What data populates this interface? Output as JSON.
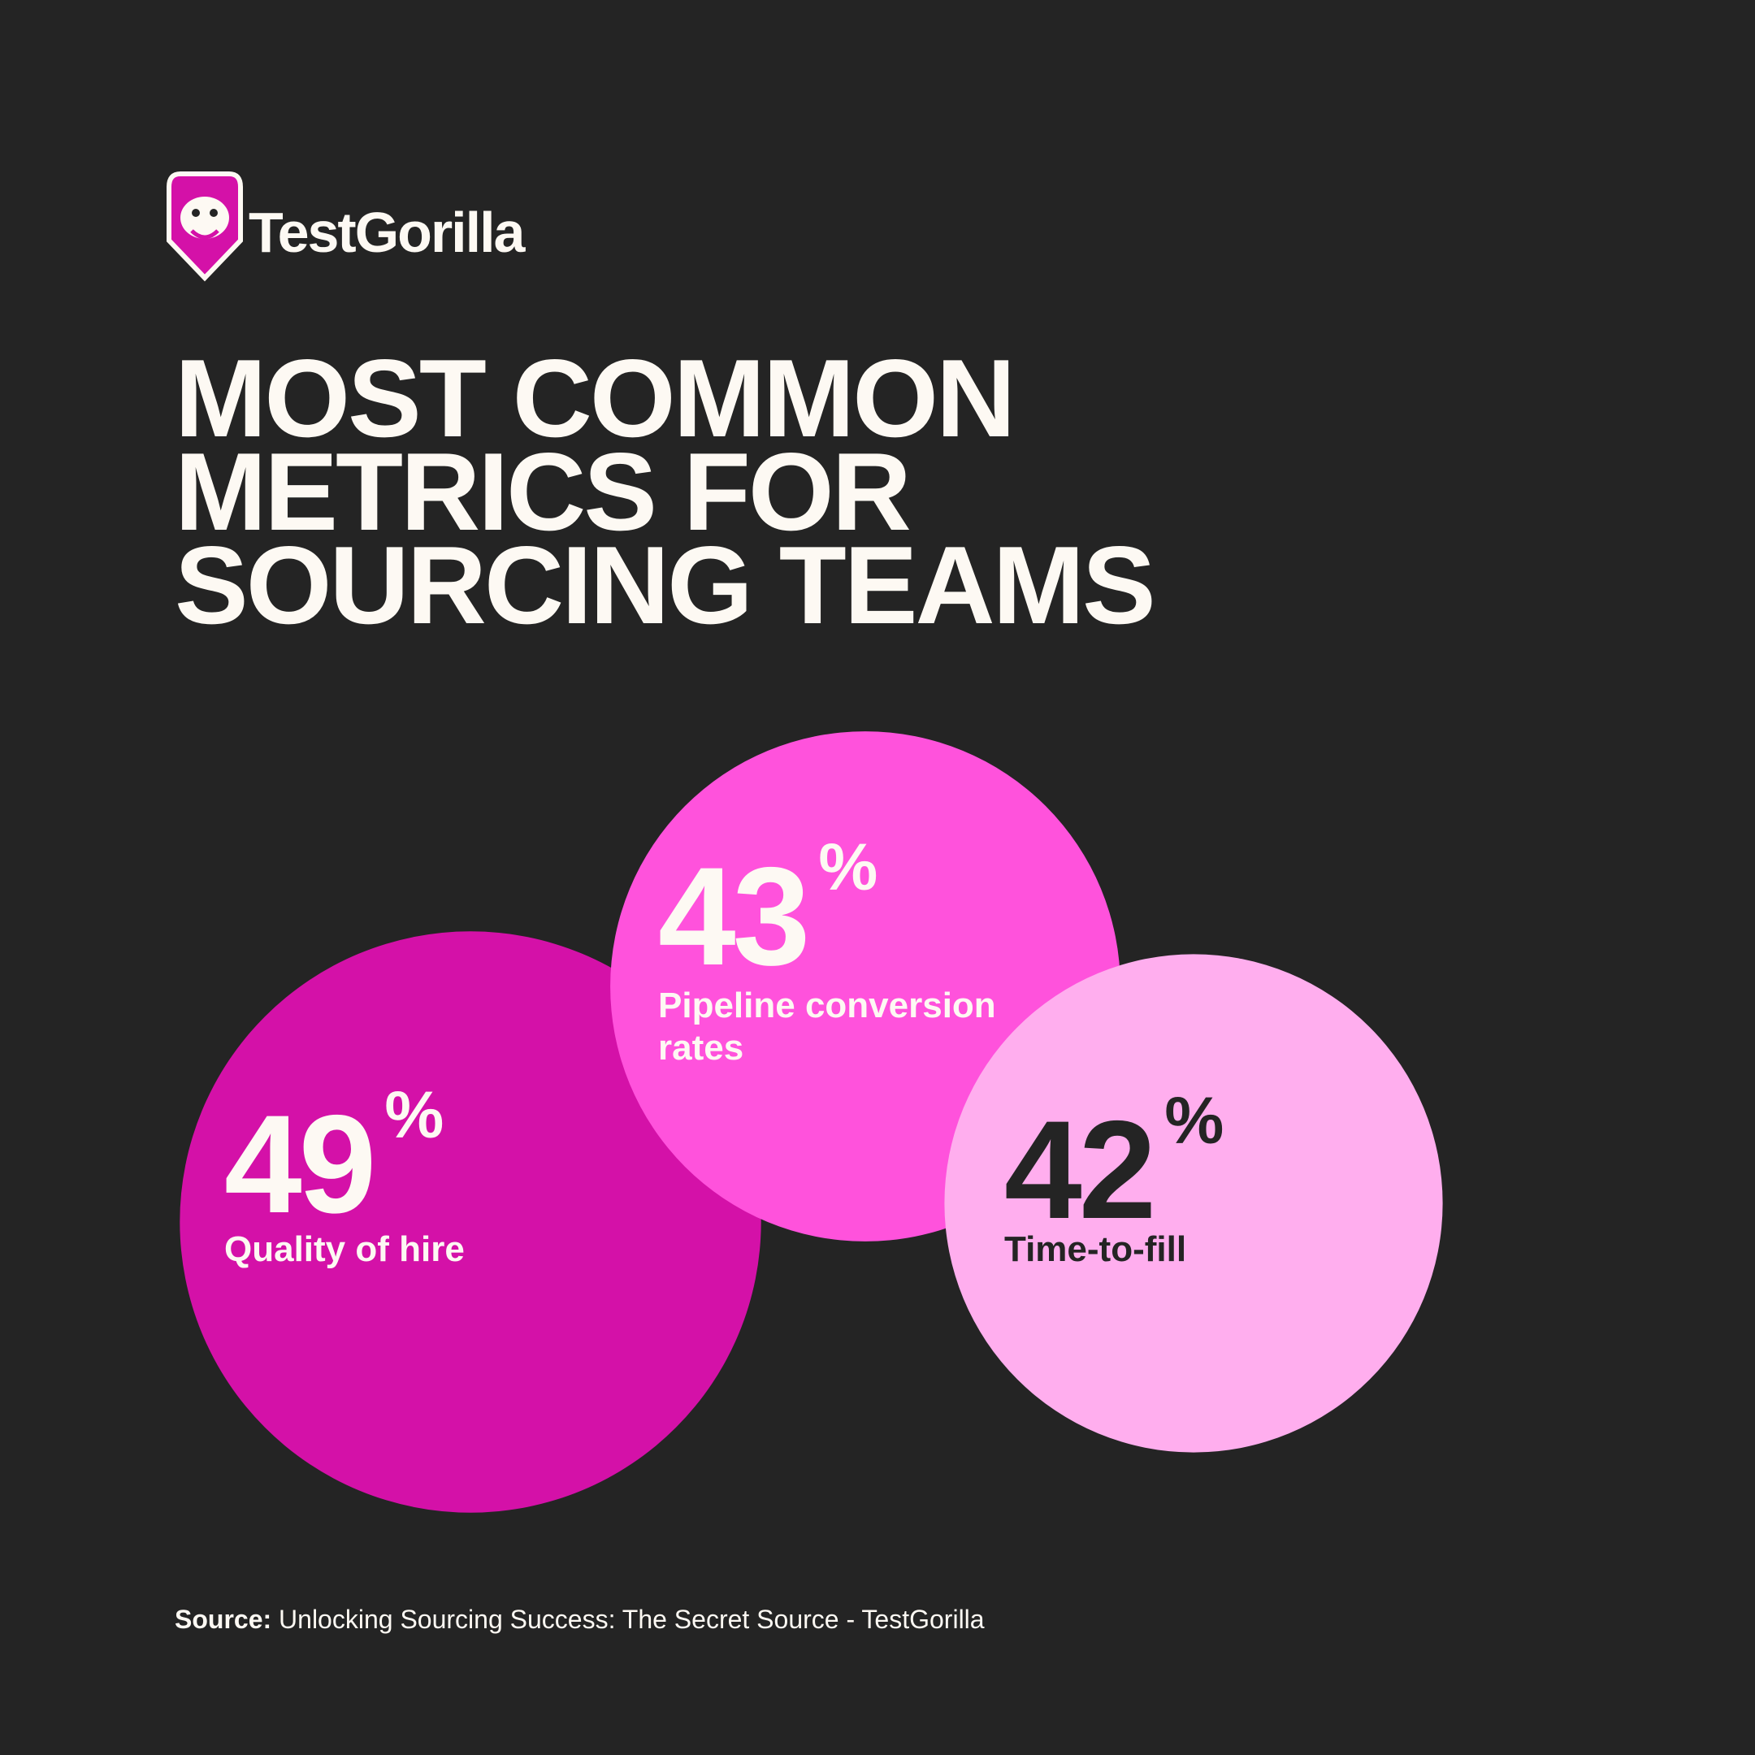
{
  "brand": "TestGorilla",
  "chart_data": {
    "type": "bubble",
    "title": [
      "MOST COMMON",
      "METRICS FOR",
      "SOURCING TEAMS"
    ],
    "categories": [
      "Quality of hire",
      "Pipeline conversion rates",
      "Time-to-fill"
    ],
    "values": [
      49,
      43,
      42
    ],
    "value_suffix": "%",
    "colors": [
      "#d411a8",
      "#ff52dc",
      "#ffaeee"
    ],
    "label_colors": [
      "#fdf9f3",
      "#fdf9f3",
      "#242424"
    ]
  },
  "source": {
    "label": "Source:",
    "text": "Unlocking Sourcing Success: The Secret Source - TestGorilla"
  }
}
